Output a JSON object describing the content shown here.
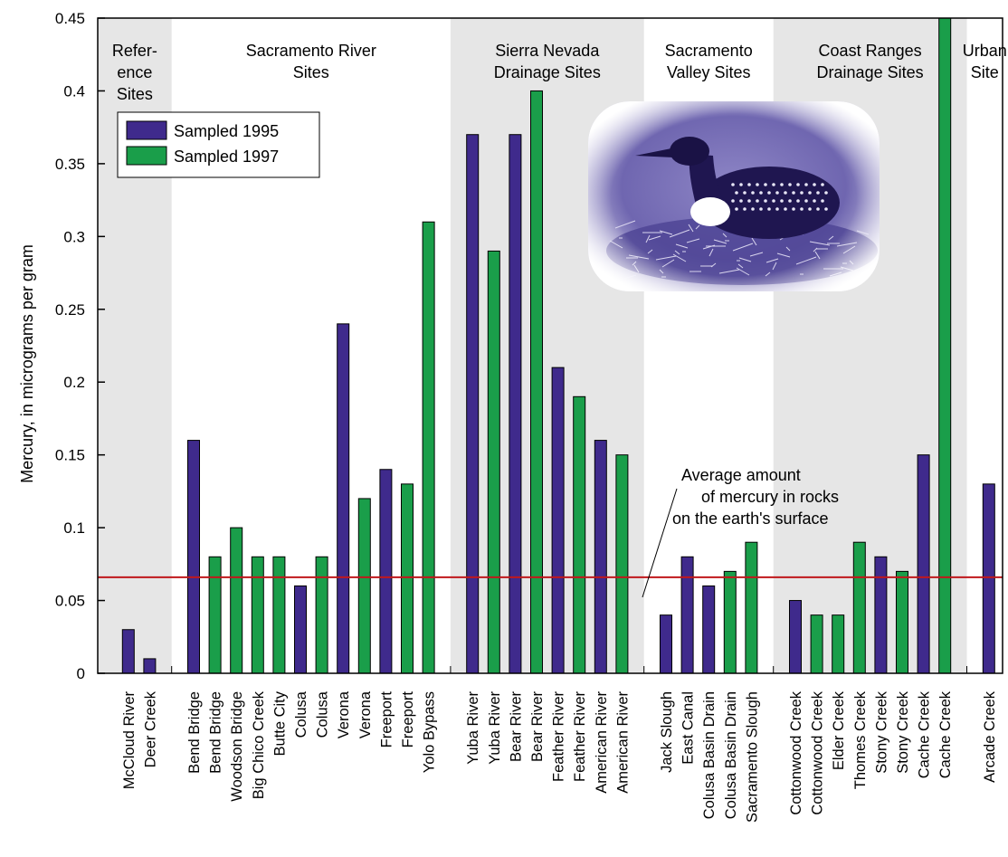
{
  "chart_data": {
    "type": "bar",
    "ylabel": "Mercury, in micrograms per gram",
    "ylim": [
      0,
      0.45
    ],
    "yticks": [
      "0",
      "0.05",
      "0.1",
      "0.15",
      "0.2",
      "0.25",
      "0.3",
      "0.35",
      "0.4",
      "0.45"
    ],
    "colors": {
      "1995": "#3f2a8c",
      "1997": "#1a9e4a",
      "reference": "#c0181c",
      "band": "#e6e6e6"
    },
    "legend": [
      {
        "key": "1995",
        "label": "Sampled 1995"
      },
      {
        "key": "1997",
        "label": "Sampled 1997"
      }
    ],
    "groups": [
      {
        "label": [
          "Refer-",
          "ence",
          "Sites"
        ],
        "shaded": true,
        "bars": [
          {
            "category": "McCloud River",
            "value": 0.03,
            "series": "1995"
          },
          {
            "category": "Deer Creek",
            "value": 0.01,
            "series": "1995"
          }
        ]
      },
      {
        "label": [
          "Sacramento River",
          "Sites"
        ],
        "shaded": false,
        "bars": [
          {
            "category": "Bend Bridge",
            "value": 0.16,
            "series": "1995"
          },
          {
            "category": "Bend Bridge",
            "value": 0.08,
            "series": "1997"
          },
          {
            "category": "Woodson Bridge",
            "value": 0.1,
            "series": "1997"
          },
          {
            "category": "Big Chico Creek",
            "value": 0.08,
            "series": "1997"
          },
          {
            "category": "Butte City",
            "value": 0.08,
            "series": "1997"
          },
          {
            "category": "Colusa",
            "value": 0.06,
            "series": "1995"
          },
          {
            "category": "Colusa",
            "value": 0.08,
            "series": "1997"
          },
          {
            "category": "Verona",
            "value": 0.24,
            "series": "1995"
          },
          {
            "category": "Verona",
            "value": 0.12,
            "series": "1997"
          },
          {
            "category": "Freeport",
            "value": 0.14,
            "series": "1995"
          },
          {
            "category": "Freeport",
            "value": 0.13,
            "series": "1997"
          },
          {
            "category": "Yolo Bypass",
            "value": 0.31,
            "series": "1997"
          }
        ]
      },
      {
        "label": [
          "Sierra Nevada",
          "Drainage Sites"
        ],
        "shaded": true,
        "bars": [
          {
            "category": "Yuba River",
            "value": 0.37,
            "series": "1995"
          },
          {
            "category": "Yuba River",
            "value": 0.29,
            "series": "1997"
          },
          {
            "category": "Bear River",
            "value": 0.37,
            "series": "1995"
          },
          {
            "category": "Bear River",
            "value": 0.4,
            "series": "1997"
          },
          {
            "category": "Feather River",
            "value": 0.21,
            "series": "1995"
          },
          {
            "category": "Feather River",
            "value": 0.19,
            "series": "1997"
          },
          {
            "category": "American River",
            "value": 0.16,
            "series": "1995"
          },
          {
            "category": "American River",
            "value": 0.15,
            "series": "1997"
          }
        ]
      },
      {
        "label": [
          "Sacramento",
          "Valley Sites"
        ],
        "shaded": false,
        "bars": [
          {
            "category": "Jack Slough",
            "value": 0.04,
            "series": "1995"
          },
          {
            "category": "East Canal",
            "value": 0.08,
            "series": "1995"
          },
          {
            "category": "Colusa Basin Drain",
            "value": 0.06,
            "series": "1995"
          },
          {
            "category": "Colusa Basin Drain",
            "value": 0.07,
            "series": "1997"
          },
          {
            "category": "Sacramento Slough",
            "value": 0.09,
            "series": "1997"
          }
        ]
      },
      {
        "label": [
          "Coast Ranges",
          "Drainage Sites"
        ],
        "shaded": true,
        "bars": [
          {
            "category": "Cottonwood Creek",
            "value": 0.05,
            "series": "1995"
          },
          {
            "category": "Cottonwood Creek",
            "value": 0.04,
            "series": "1997"
          },
          {
            "category": "Elder Creek",
            "value": 0.04,
            "series": "1997"
          },
          {
            "category": "Thomes Creek",
            "value": 0.09,
            "series": "1997"
          },
          {
            "category": "Stony Creek",
            "value": 0.08,
            "series": "1995"
          },
          {
            "category": "Stony Creek",
            "value": 0.07,
            "series": "1997"
          },
          {
            "category": "Cache Creek",
            "value": 0.15,
            "series": "1995"
          },
          {
            "category": "Cache Creek",
            "value": 0.45,
            "series": "1997"
          }
        ]
      },
      {
        "label": [
          "Urban",
          "Site"
        ],
        "shaded": false,
        "bars": [
          {
            "category": "Arcade Creek",
            "value": 0.13,
            "series": "1995"
          }
        ]
      }
    ],
    "reference_line": {
      "value": 0.066,
      "label": [
        "Average amount",
        "of mercury in rocks",
        "on the earth's surface"
      ]
    },
    "image": {
      "subject": "common loon on nest",
      "icon": "loon-photo"
    }
  }
}
